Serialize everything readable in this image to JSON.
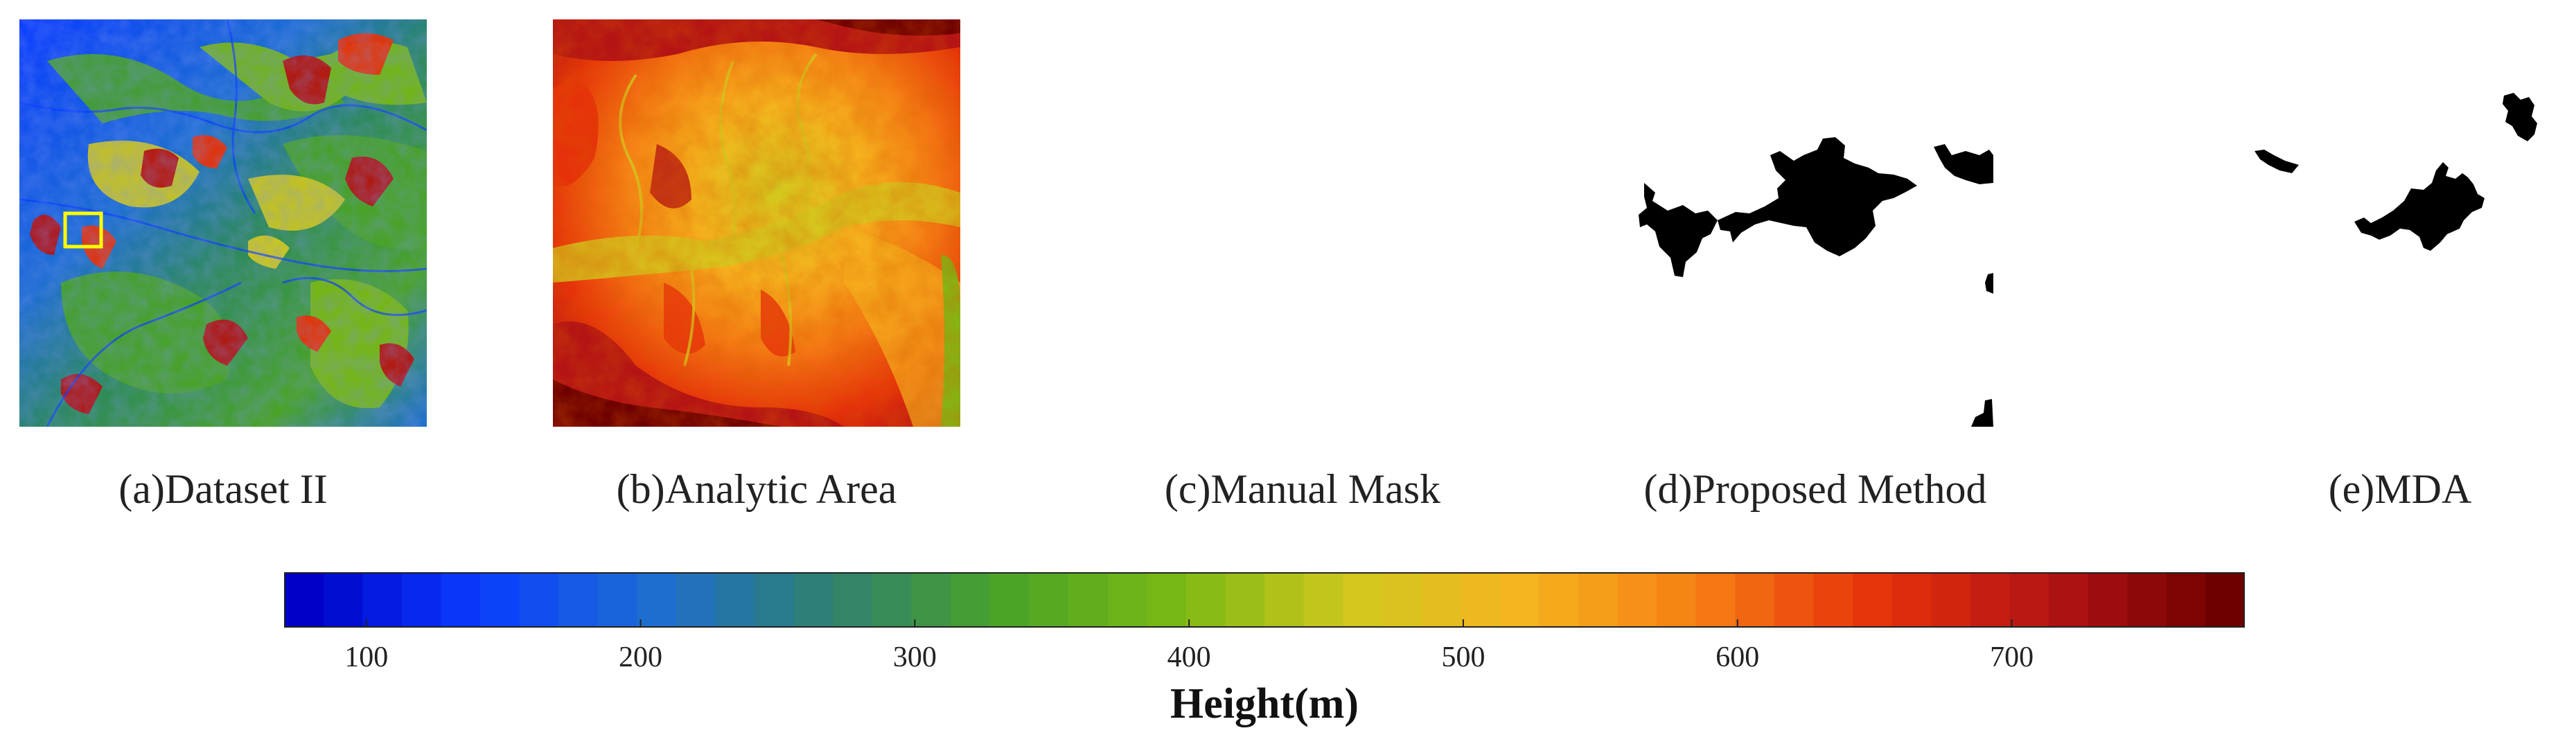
{
  "figure": {
    "panels": [
      {
        "id": "a",
        "caption": "(a)Dataset II",
        "content": "elevation-map"
      },
      {
        "id": "b",
        "caption": "(b)Analytic Area",
        "content": "elevation-map-zoomed"
      },
      {
        "id": "c",
        "caption": "(c)Manual Mask",
        "content": "empty-mask"
      },
      {
        "id": "d",
        "caption": "(d)Proposed Method",
        "content": "binary-mask"
      },
      {
        "id": "e",
        "caption": "(e)MDA",
        "content": "binary-mask"
      }
    ],
    "highlight_box_color": "#ffff00",
    "mask_color": "#000000"
  },
  "chart_data": {
    "type": "heatmap",
    "colorbar": {
      "label": "Height(m)",
      "range": [
        70,
        785
      ],
      "ticks": [
        100,
        200,
        300,
        400,
        500,
        600,
        700
      ],
      "colors": [
        "#0000c8",
        "#0a3cff",
        "#1e6ed2",
        "#2e8070",
        "#4aa328",
        "#7ab814",
        "#d2c81e",
        "#f5b41e",
        "#f57d14",
        "#e6320a",
        "#b41414",
        "#6e0000"
      ]
    }
  }
}
